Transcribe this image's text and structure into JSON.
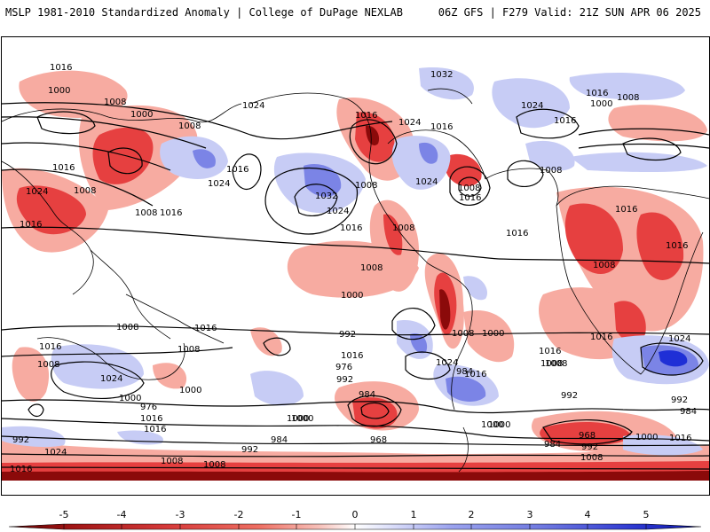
{
  "header": {
    "left_title": "MSLP 1981-2010 Standardized Anomaly | College of DuPage NEXLAB",
    "right_title": "06Z GFS | F279 Valid: 21Z SUN APR 06 2025"
  },
  "map": {
    "projection": "global cylindrical (Pacific-centered)",
    "fill_field": "MSLP standardized anomaly",
    "contour_field": "MSLP (hPa)",
    "colors": {
      "strong_negative": "#8b0a0a",
      "negative": "#e64040",
      "weak_negative": "#f7a79c",
      "neutral": "#ffffff",
      "weak_positive": "#c7ccf5",
      "positive": "#7b84e6",
      "strong_positive": "#1f2fd6",
      "contours": "#000000",
      "coastlines": "#000000"
    },
    "contour_labels": [
      "1016",
      "1000",
      "1008",
      "1000",
      "1016",
      "1024",
      "1008",
      "1016",
      "1024",
      "1008",
      "1008",
      "1016",
      "1024",
      "1016",
      "1032",
      "1024",
      "1016",
      "1008",
      "1024",
      "1016",
      "1008",
      "1016",
      "1032",
      "1016",
      "1024",
      "1016",
      "1008",
      "1016",
      "1008",
      "1000",
      "1008",
      "1016",
      "1024",
      "1016",
      "1008",
      "1016",
      "1016",
      "1008",
      "1016",
      "1008",
      "1024",
      "1000",
      "992",
      "976",
      "984",
      "1016",
      "992",
      "1024",
      "1008",
      "1000",
      "984",
      "1000",
      "992",
      "1016",
      "1008",
      "1000",
      "992",
      "984",
      "968",
      "1008",
      "1024",
      "1000",
      "1008",
      "1016",
      "1008",
      "1016",
      "1016",
      "1008",
      "1024",
      "1008",
      "1016",
      "1000",
      "992",
      "976",
      "992",
      "984",
      "1000",
      "1016",
      "1008",
      "984",
      "968",
      "1016",
      "1000",
      "992",
      "1000"
    ]
  },
  "colorbar": {
    "ticks": [
      "-5",
      "-4",
      "-3",
      "-2",
      "-1",
      "0",
      "1",
      "2",
      "3",
      "4",
      "5"
    ],
    "colors": [
      "#7a0a0a",
      "#b01d1d",
      "#d63a3a",
      "#ee6e62",
      "#f7a79c",
      "#ffffff",
      "#c7ccf5",
      "#9aa2ee",
      "#6f79e0",
      "#3f4ad8",
      "#1a27c9"
    ]
  }
}
